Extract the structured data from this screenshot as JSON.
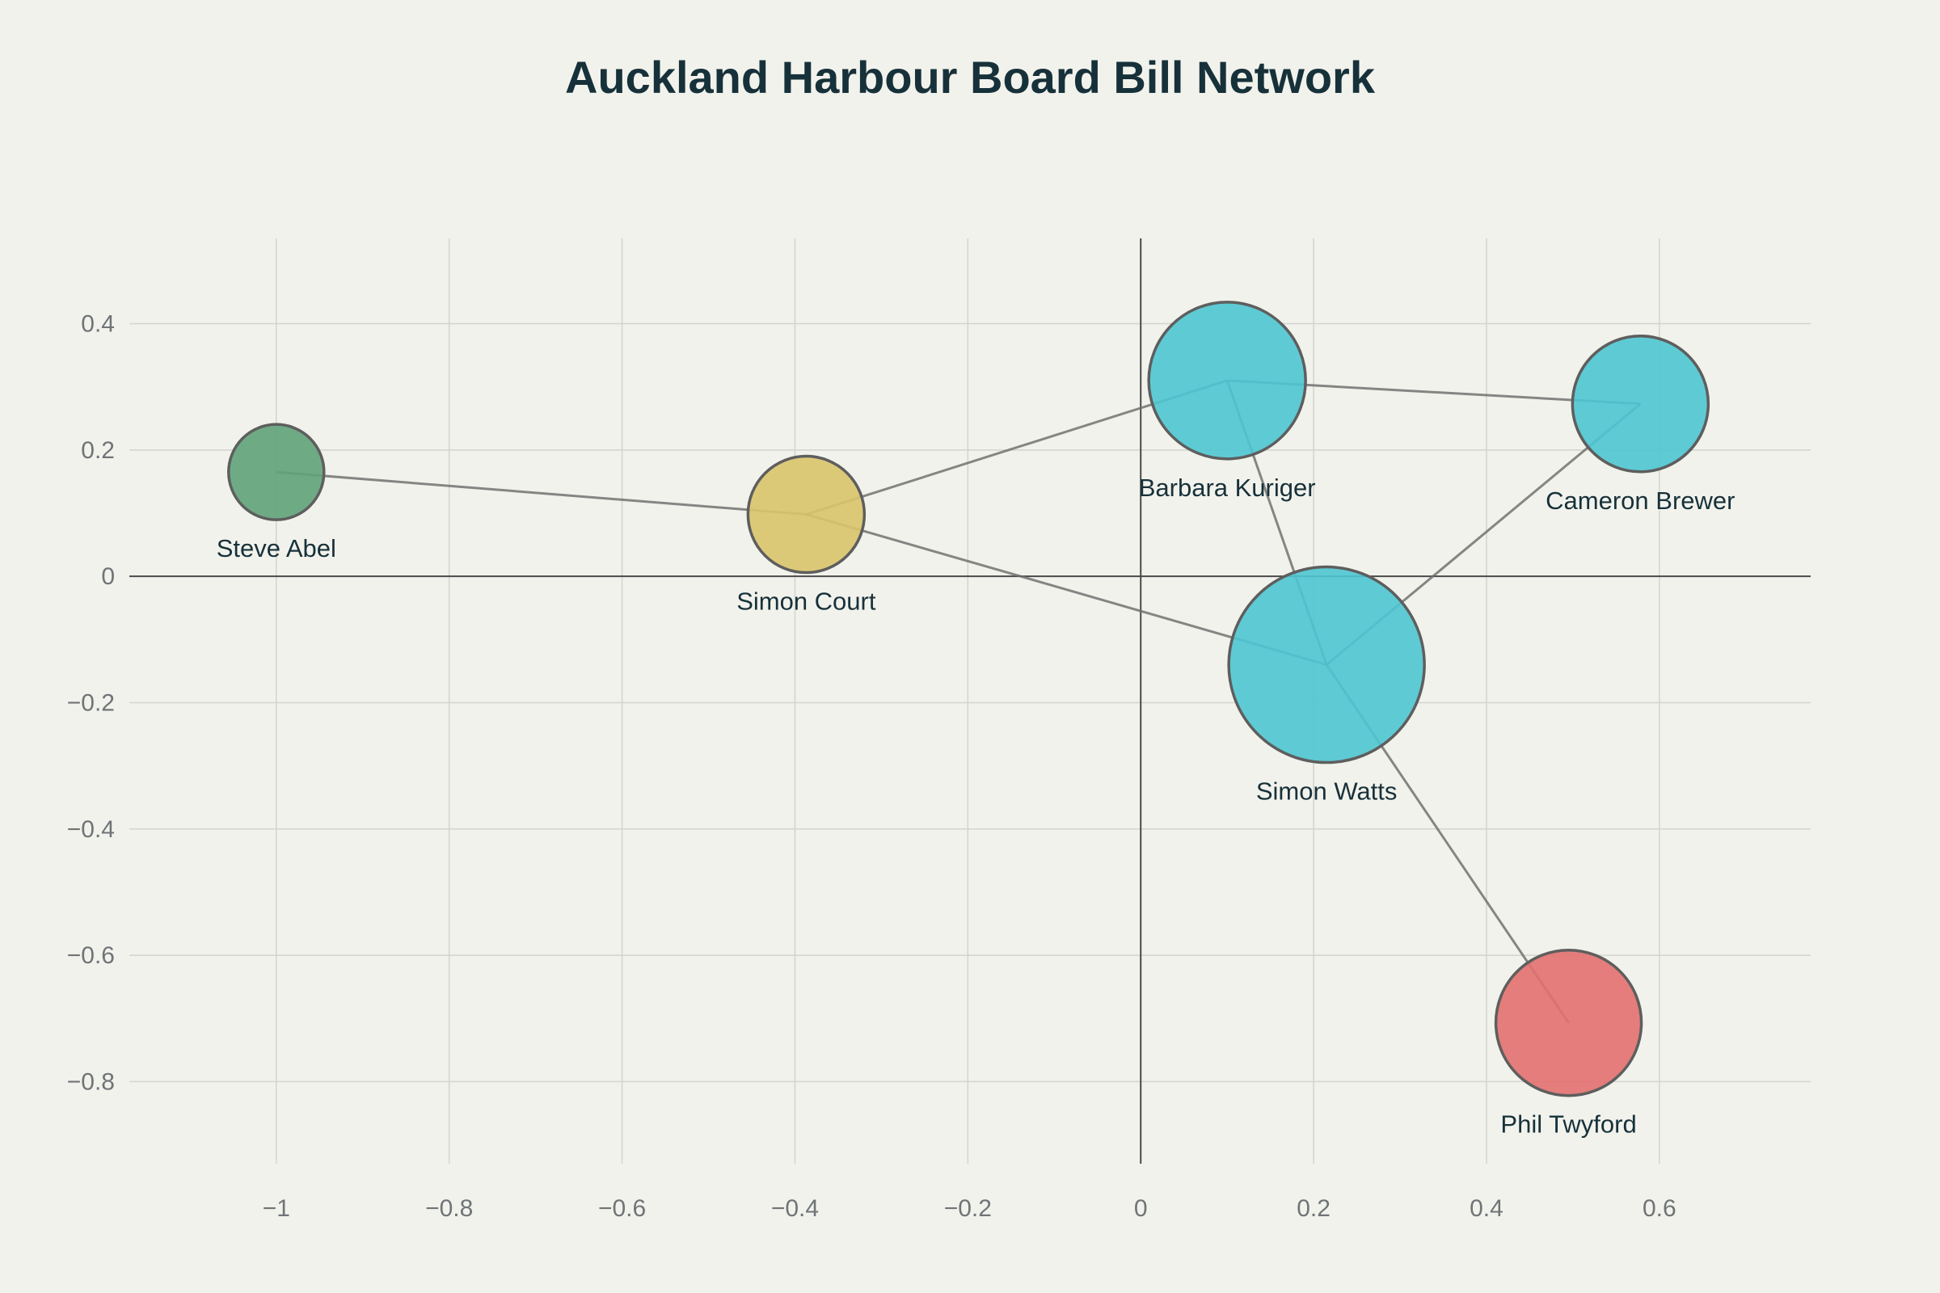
{
  "chart_data": {
    "type": "scatter",
    "title": "Auckland Harbour Board Bill Network",
    "xlabel": "",
    "ylabel": "",
    "xlim": [
      -1.17,
      0.775
    ],
    "ylim": [
      -0.93,
      0.535
    ],
    "x_ticks": [
      -1,
      -0.8,
      -0.6,
      -0.4,
      -0.2,
      0,
      0.2,
      0.4,
      0.6
    ],
    "y_ticks": [
      0.4,
      0.2,
      0,
      -0.2,
      -0.4,
      -0.6,
      -0.8
    ],
    "x_tick_labels": [
      "−1",
      "−0.8",
      "−0.6",
      "−0.4",
      "−0.2",
      "0",
      "0.2",
      "0.4",
      "0.6"
    ],
    "y_tick_labels": [
      "0.4",
      "0.2",
      "0",
      "−0.2",
      "−0.4",
      "−0.6",
      "−0.8"
    ],
    "grid": true,
    "legend": "none",
    "nodes": [
      {
        "id": "steve-abel",
        "label": "Steve Abel",
        "x": -1.0,
        "y": 0.165,
        "size": 59,
        "color": "#5fa37a"
      },
      {
        "id": "simon-court",
        "label": "Simon Court",
        "x": -0.387,
        "y": 0.098,
        "size": 72,
        "color": "#d9c46c"
      },
      {
        "id": "barbara-kuriger",
        "label": "Barbara Kuriger",
        "x": 0.1,
        "y": 0.31,
        "size": 97,
        "color": "#4ec5d2"
      },
      {
        "id": "cameron-brewer",
        "label": "Cameron Brewer",
        "x": 0.578,
        "y": 0.273,
        "size": 84,
        "color": "#4ec5d2"
      },
      {
        "id": "simon-watts",
        "label": "Simon Watts",
        "x": 0.215,
        "y": -0.14,
        "size": 121,
        "color": "#4ec5d2"
      },
      {
        "id": "phil-twyford",
        "label": "Phil Twyford",
        "x": 0.495,
        "y": -0.707,
        "size": 90,
        "color": "#e2706f"
      }
    ],
    "edges": [
      [
        "steve-abel",
        "simon-court"
      ],
      [
        "simon-court",
        "barbara-kuriger"
      ],
      [
        "simon-court",
        "simon-watts"
      ],
      [
        "barbara-kuriger",
        "cameron-brewer"
      ],
      [
        "barbara-kuriger",
        "simon-watts"
      ],
      [
        "simon-watts",
        "cameron-brewer"
      ],
      [
        "simon-watts",
        "phil-twyford"
      ]
    ]
  }
}
